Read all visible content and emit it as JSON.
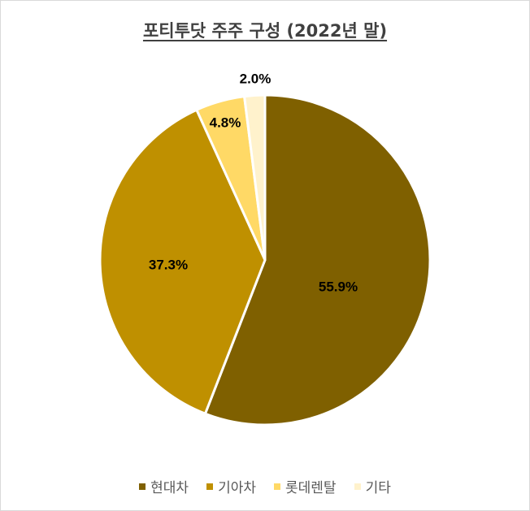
{
  "chart_data": {
    "type": "pie",
    "title": "포티투닷  주주 구성 (2022년 말)",
    "categories": [
      "현대차",
      "기아차",
      "롯데렌탈",
      "기타"
    ],
    "values": [
      55.9,
      37.3,
      4.8,
      2.0
    ],
    "data_labels": [
      "55.9%",
      "37.3%",
      "4.8%",
      "2.0%"
    ],
    "colors": [
      "#7f6000",
      "#bf9000",
      "#ffd966",
      "#fff2cc"
    ],
    "legend_position": "bottom"
  }
}
